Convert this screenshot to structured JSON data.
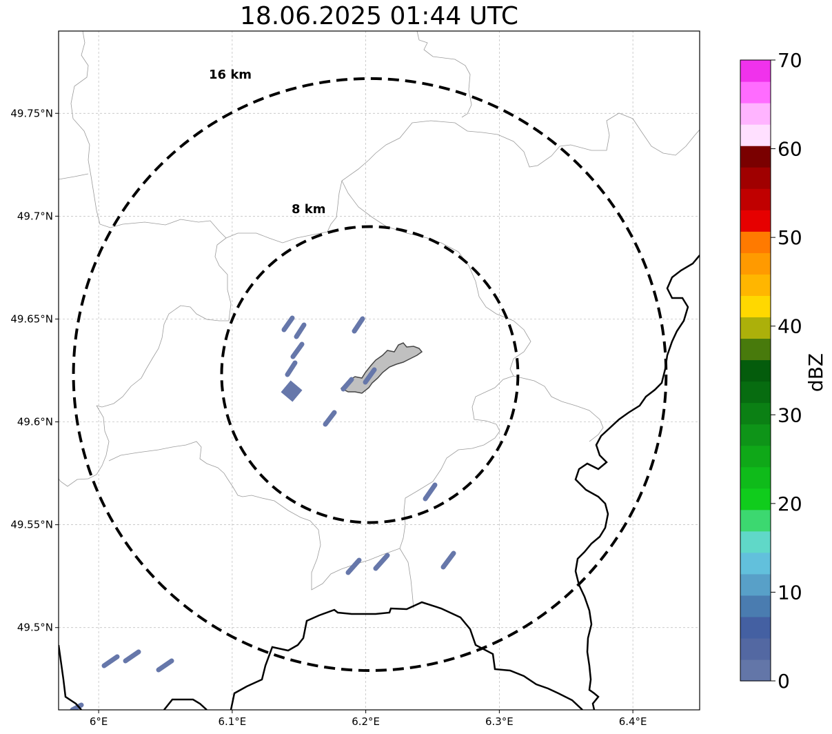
{
  "title": "18.06.2025 01:44 UTC",
  "map": {
    "lon_range": [
      5.97,
      6.45
    ],
    "lat_range": [
      49.46,
      49.79
    ],
    "x_ticks": [
      "6°E",
      "6.1°E",
      "6.2°E",
      "6.3°E",
      "6.4°E"
    ],
    "x_tick_values": [
      6.0,
      6.1,
      6.2,
      6.3,
      6.4
    ],
    "y_ticks": [
      "49.75°N",
      "49.7°N",
      "49.65°N",
      "49.6°N",
      "49.55°N",
      "49.5°N"
    ],
    "y_tick_values": [
      49.75,
      49.7,
      49.65,
      49.6,
      49.55,
      49.5
    ],
    "grid": true,
    "center": {
      "lon": 6.203,
      "lat": 49.623
    },
    "range_rings": [
      {
        "label": "8 km",
        "radius_km": 8
      },
      {
        "label": "16 km",
        "radius_km": 16
      }
    ],
    "city_area_color": "#c0c0c0",
    "country_border_color": "#000000",
    "admin_border_color": "#9a9a9a",
    "echo_color": "#6677aa"
  },
  "colorbar": {
    "label": "dBZ",
    "min": 0,
    "max": 70,
    "tick_labels": [
      "0",
      "10",
      "20",
      "30",
      "40",
      "50",
      "60",
      "70"
    ],
    "colors": [
      "#6376a8",
      "#5368a2",
      "#4460a2",
      "#4a7cb0",
      "#58a0c8",
      "#62c0dc",
      "#60d8c8",
      "#3cd870",
      "#10cc1c",
      "#0fbb1a",
      "#0fa818",
      "#0e9418",
      "#0b8014",
      "#076c10",
      "#045c0c",
      "#487a0c",
      "#acb00a",
      "#ffd800",
      "#ffb600",
      "#ff9a00",
      "#ff7a00",
      "#e60000",
      "#c00000",
      "#a00000",
      "#7a0000",
      "#ffe0ff",
      "#ffb4ff",
      "#ff6cff",
      "#f032ec"
    ]
  }
}
